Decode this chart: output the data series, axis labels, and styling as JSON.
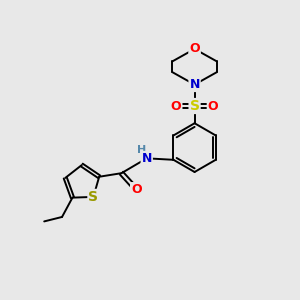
{
  "background_color": "#e8e8e8",
  "figsize": [
    3.0,
    3.0
  ],
  "dpi": 100,
  "atom_colors": {
    "C": "#000000",
    "N": "#0000cd",
    "O": "#ff0000",
    "S_sulfonyl": "#cccc00",
    "S_thio": "#999900",
    "H": "#5588aa"
  },
  "bond_color": "#000000",
  "bond_width": 1.4,
  "font_size": 9
}
